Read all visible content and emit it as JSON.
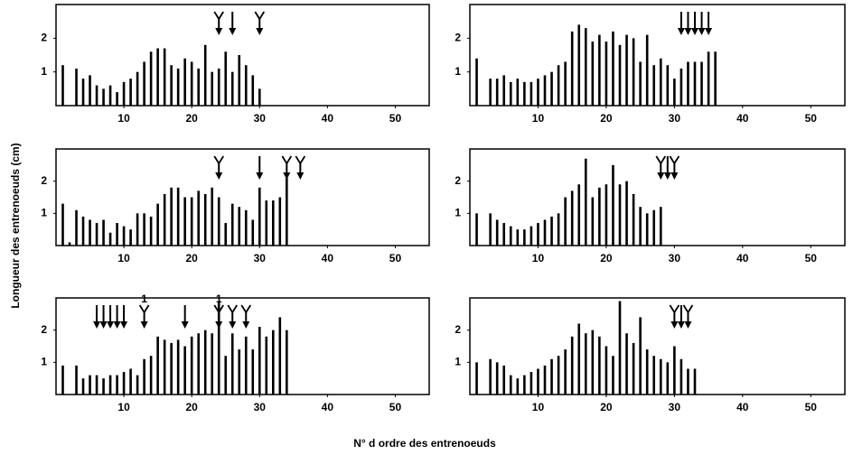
{
  "labels": {
    "ylabel": "Longueur des entrenoeuds (cm)",
    "xlabel": "N° d ordre des entrenoeuds"
  },
  "chart_data": [
    {
      "type": "bar",
      "color": "#000000",
      "xlim": [
        0,
        55
      ],
      "xticks": [
        10,
        20,
        30,
        40,
        50
      ],
      "ylim": [
        0,
        3
      ],
      "yticks": [
        1,
        2
      ],
      "x": [
        1,
        2,
        3,
        4,
        5,
        6,
        7,
        8,
        9,
        10,
        11,
        12,
        13,
        14,
        15,
        16,
        17,
        18,
        19,
        20,
        21,
        22,
        23,
        24,
        25,
        26,
        27,
        28,
        29,
        30
      ],
      "values": [
        1.2,
        null,
        1.1,
        0.8,
        0.9,
        0.6,
        0.5,
        0.6,
        0.4,
        0.7,
        0.8,
        1.0,
        1.3,
        1.6,
        1.7,
        1.7,
        1.2,
        1.1,
        1.4,
        1.3,
        1.1,
        1.8,
        1.0,
        1.1,
        1.6,
        1.0,
        1.5,
        1.2,
        0.9,
        0.5
      ],
      "arrows": [
        {
          "x": 24,
          "kind": "fork"
        },
        {
          "x": 26,
          "kind": "solid"
        },
        {
          "x": 30,
          "kind": "fork"
        }
      ]
    },
    {
      "type": "bar",
      "color": "#000000",
      "xlim": [
        0,
        55
      ],
      "xticks": [
        10,
        20,
        30,
        40,
        50
      ],
      "ylim": [
        0,
        3
      ],
      "yticks": [
        1,
        2
      ],
      "x": [
        1,
        2,
        3,
        4,
        5,
        6,
        7,
        8,
        9,
        10,
        11,
        12,
        13,
        14,
        15,
        16,
        17,
        18,
        19,
        20,
        21,
        22,
        23,
        24,
        25,
        26,
        27,
        28,
        29,
        30,
        31,
        32,
        33,
        34,
        35,
        36
      ],
      "values": [
        1.4,
        null,
        0.8,
        0.8,
        0.9,
        0.7,
        0.8,
        0.7,
        0.7,
        0.8,
        0.9,
        1.0,
        1.2,
        1.3,
        2.2,
        2.4,
        2.3,
        1.9,
        2.1,
        1.9,
        2.2,
        1.8,
        2.1,
        2.0,
        1.3,
        2.1,
        1.2,
        1.4,
        1.2,
        0.8,
        1.1,
        1.3,
        1.3,
        1.3,
        1.6,
        1.6
      ],
      "arrows": [
        {
          "x": 31,
          "kind": "solid"
        },
        {
          "x": 32,
          "kind": "solid"
        },
        {
          "x": 33,
          "kind": "solid"
        },
        {
          "x": 34,
          "kind": "solid"
        },
        {
          "x": 35,
          "kind": "solid"
        }
      ]
    },
    {
      "type": "bar",
      "color": "#000000",
      "xlim": [
        0,
        55
      ],
      "xticks": [
        10,
        20,
        30,
        40,
        50
      ],
      "ylim": [
        0,
        3
      ],
      "yticks": [
        1,
        2
      ],
      "x": [
        1,
        2,
        3,
        4,
        5,
        6,
        7,
        8,
        9,
        10,
        11,
        12,
        13,
        14,
        15,
        16,
        17,
        18,
        19,
        20,
        21,
        22,
        23,
        24,
        25,
        26,
        27,
        28,
        29,
        30,
        31,
        32,
        33,
        34
      ],
      "values": [
        1.3,
        0.1,
        1.1,
        0.9,
        0.8,
        0.7,
        0.8,
        0.4,
        0.7,
        0.6,
        0.5,
        1.0,
        1.0,
        0.9,
        1.3,
        1.6,
        1.8,
        1.8,
        1.5,
        1.5,
        1.7,
        1.6,
        1.8,
        1.5,
        0.7,
        1.3,
        1.2,
        1.1,
        0.8,
        1.8,
        1.4,
        1.4,
        1.5,
        2.1
      ],
      "arrows": [
        {
          "x": 24,
          "kind": "fork"
        },
        {
          "x": 30,
          "kind": "solid"
        },
        {
          "x": 34,
          "kind": "fork"
        },
        {
          "x": 36,
          "kind": "fork"
        }
      ]
    },
    {
      "type": "bar",
      "color": "#000000",
      "xlim": [
        0,
        55
      ],
      "xticks": [
        10,
        20,
        30,
        40,
        50
      ],
      "ylim": [
        0,
        3
      ],
      "yticks": [
        1,
        2
      ],
      "x": [
        1,
        2,
        3,
        4,
        5,
        6,
        7,
        8,
        9,
        10,
        11,
        12,
        13,
        14,
        15,
        16,
        17,
        18,
        19,
        20,
        21,
        22,
        23,
        24,
        25,
        26,
        27,
        28
      ],
      "values": [
        1.0,
        null,
        1.0,
        0.8,
        0.7,
        0.6,
        0.5,
        0.5,
        0.6,
        0.7,
        0.8,
        0.9,
        1.0,
        1.5,
        1.7,
        1.9,
        2.7,
        1.5,
        1.8,
        1.9,
        2.5,
        1.9,
        2.0,
        1.6,
        1.2,
        1.0,
        1.1,
        1.2
      ],
      "arrows": [
        {
          "x": 28,
          "kind": "fork"
        },
        {
          "x": 29,
          "kind": "solid"
        },
        {
          "x": 30,
          "kind": "fork"
        }
      ]
    },
    {
      "type": "bar",
      "color": "#000000",
      "xlim": [
        0,
        55
      ],
      "xticks": [
        10,
        20,
        30,
        40,
        50
      ],
      "ylim": [
        0,
        3
      ],
      "yticks": [
        1,
        2
      ],
      "x": [
        1,
        2,
        3,
        4,
        5,
        6,
        7,
        8,
        9,
        10,
        11,
        12,
        13,
        14,
        15,
        16,
        17,
        18,
        19,
        20,
        21,
        22,
        23,
        24,
        25,
        26,
        27,
        28,
        29,
        30,
        31,
        32,
        33,
        34
      ],
      "values": [
        0.9,
        null,
        0.9,
        0.5,
        0.6,
        0.6,
        0.5,
        0.6,
        0.6,
        0.7,
        0.8,
        0.6,
        1.1,
        1.2,
        1.8,
        1.7,
        1.6,
        1.7,
        1.5,
        1.8,
        1.9,
        2.0,
        1.9,
        2.9,
        1.2,
        1.9,
        1.4,
        1.8,
        1.4,
        2.1,
        1.8,
        2.0,
        2.4,
        2.0
      ],
      "arrows": [
        {
          "x": 6,
          "kind": "solid"
        },
        {
          "x": 7,
          "kind": "solid"
        },
        {
          "x": 8,
          "kind": "solid"
        },
        {
          "x": 9,
          "kind": "solid"
        },
        {
          "x": 10,
          "kind": "solid"
        },
        {
          "x": 13,
          "kind": "fork",
          "label": "1"
        },
        {
          "x": 19,
          "kind": "solid"
        },
        {
          "x": 24,
          "kind": "fork",
          "label": "1"
        },
        {
          "x": 26,
          "kind": "fork"
        },
        {
          "x": 28,
          "kind": "fork"
        }
      ]
    },
    {
      "type": "bar",
      "color": "#000000",
      "xlim": [
        0,
        55
      ],
      "xticks": [
        10,
        20,
        30,
        40,
        50
      ],
      "ylim": [
        0,
        3
      ],
      "yticks": [
        1,
        2
      ],
      "x": [
        1,
        2,
        3,
        4,
        5,
        6,
        7,
        8,
        9,
        10,
        11,
        12,
        13,
        14,
        15,
        16,
        17,
        18,
        19,
        20,
        21,
        22,
        23,
        24,
        25,
        26,
        27,
        28,
        29,
        30,
        31,
        32,
        33
      ],
      "values": [
        1.0,
        null,
        1.1,
        1.0,
        0.9,
        0.6,
        0.5,
        0.6,
        0.7,
        0.8,
        0.9,
        1.1,
        1.2,
        1.4,
        1.8,
        2.2,
        1.9,
        2.0,
        1.8,
        1.5,
        1.2,
        2.9,
        1.9,
        1.6,
        2.4,
        1.4,
        1.2,
        1.1,
        1.0,
        1.5,
        1.1,
        0.8,
        0.8
      ],
      "arrows": [
        {
          "x": 30,
          "kind": "fork"
        },
        {
          "x": 31,
          "kind": "solid"
        },
        {
          "x": 32,
          "kind": "fork"
        }
      ]
    }
  ]
}
